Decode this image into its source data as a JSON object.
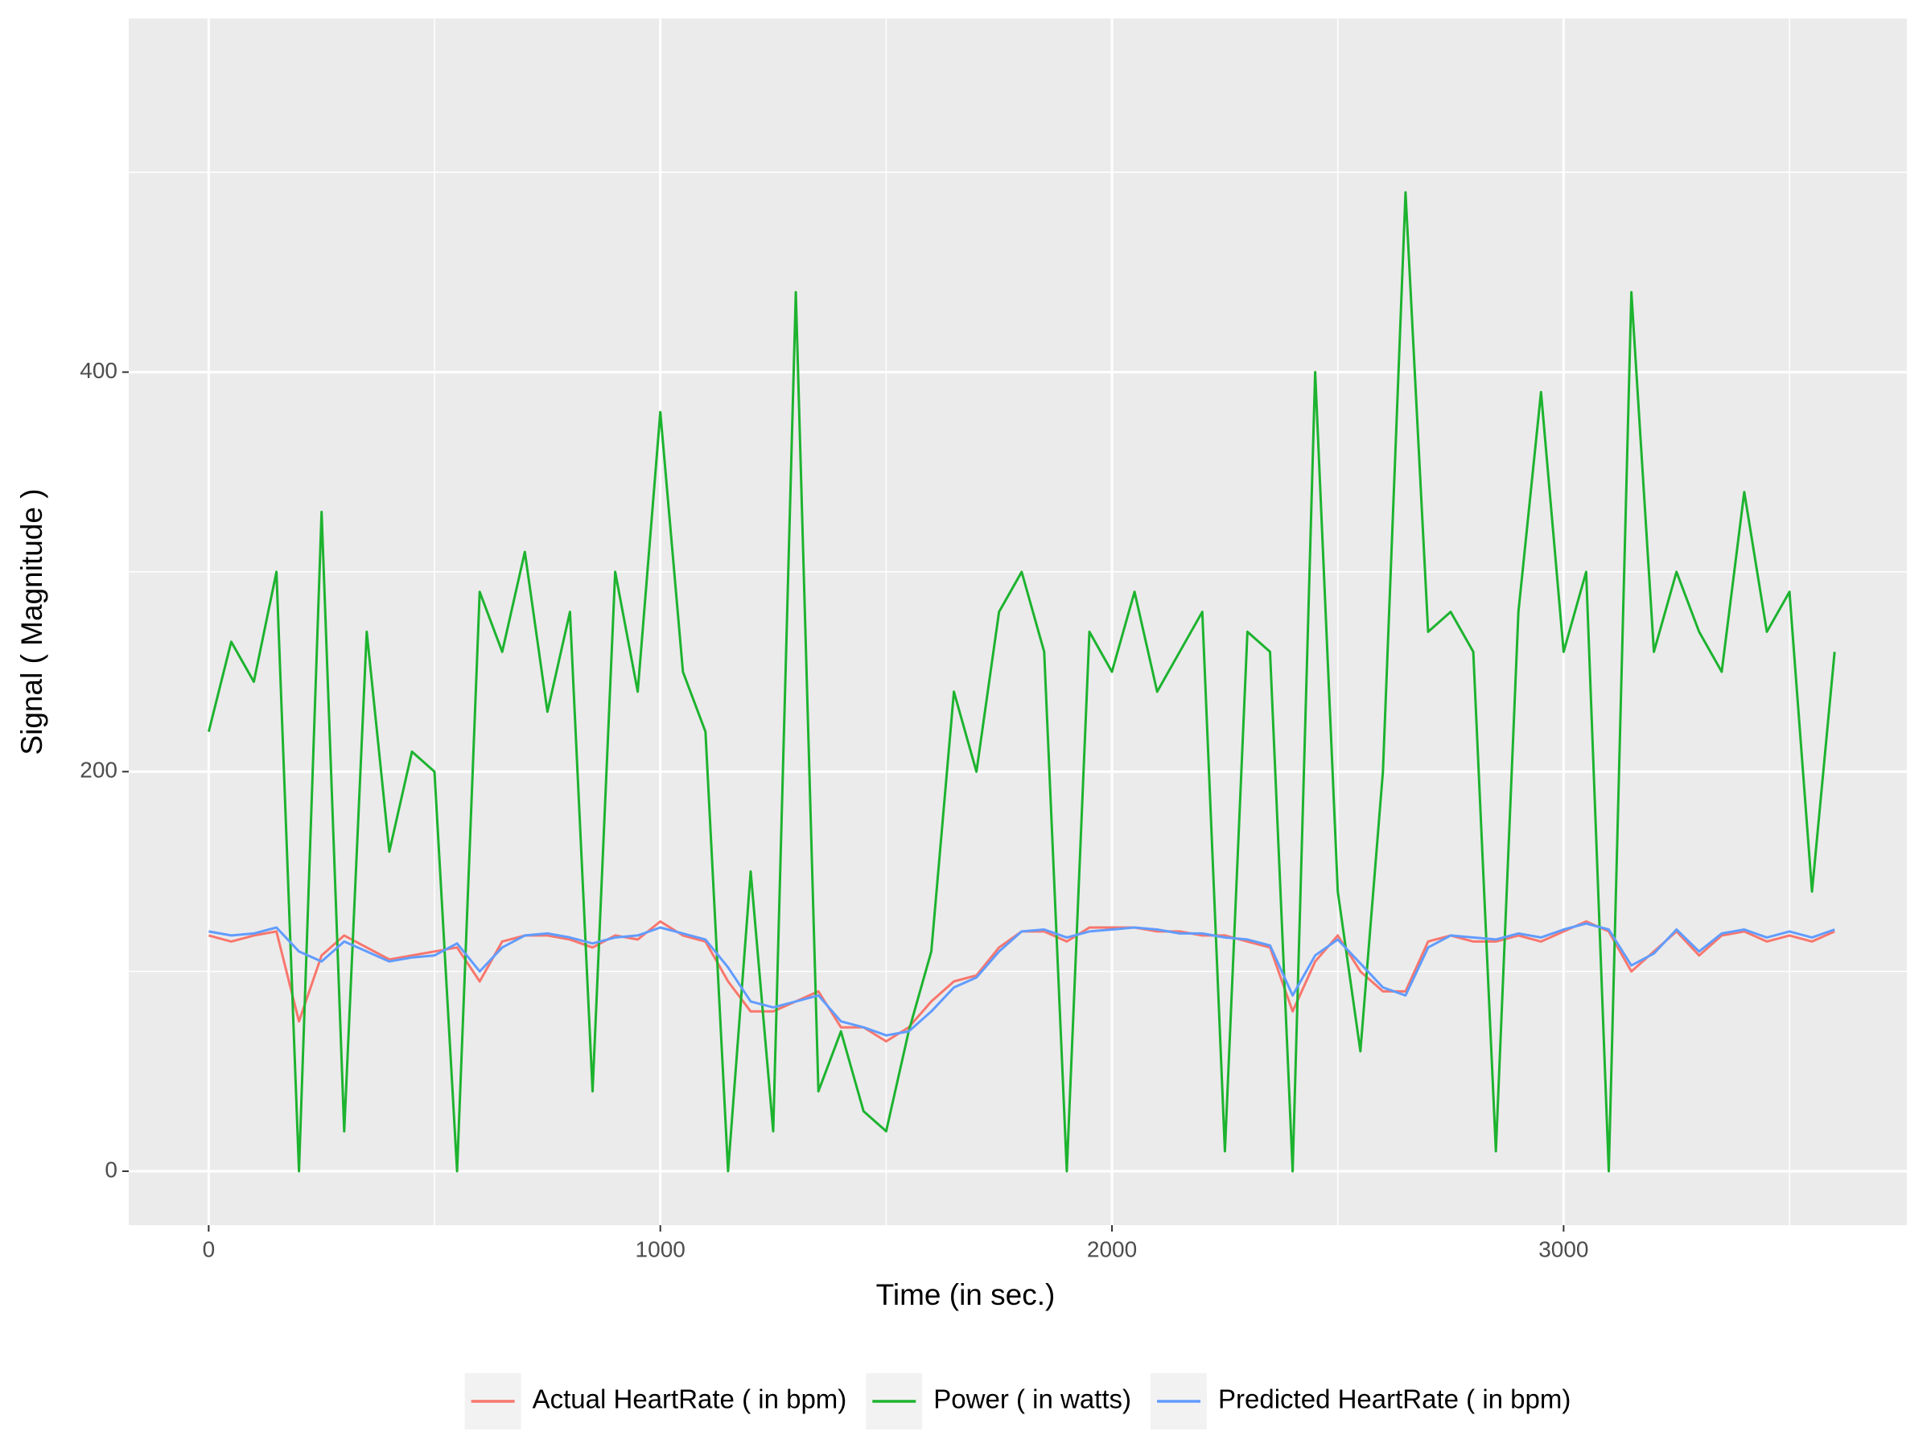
{
  "chart_data": {
    "type": "line",
    "x_label": "Time (in sec.)",
    "y_label": "Signal ( Magnitude )",
    "x": [
      0,
      50,
      100,
      150,
      200,
      250,
      300,
      350,
      400,
      450,
      500,
      550,
      600,
      650,
      700,
      750,
      800,
      850,
      900,
      950,
      1000,
      1050,
      1100,
      1150,
      1200,
      1250,
      1300,
      1350,
      1400,
      1450,
      1500,
      1550,
      1600,
      1650,
      1700,
      1750,
      1800,
      1850,
      1900,
      1950,
      2000,
      2050,
      2100,
      2150,
      2200,
      2250,
      2300,
      2350,
      2400,
      2450,
      2500,
      2550,
      2600,
      2650,
      2700,
      2750,
      2800,
      2850,
      2900,
      2950,
      3000,
      3050,
      3100,
      3150,
      3200,
      3250,
      3300,
      3350,
      3400,
      3450,
      3500,
      3550,
      3600
    ],
    "series": [
      {
        "name": "Actual HeartRate ( in bpm)",
        "color": "#F8766D",
        "values": [
          118,
          115,
          118,
          120,
          75,
          108,
          118,
          112,
          106,
          108,
          110,
          112,
          95,
          115,
          118,
          118,
          116,
          112,
          118,
          116,
          125,
          118,
          115,
          95,
          80,
          80,
          85,
          90,
          72,
          72,
          65,
          72,
          85,
          95,
          98,
          112,
          120,
          120,
          115,
          122,
          122,
          122,
          120,
          120,
          118,
          118,
          115,
          112,
          80,
          105,
          118,
          100,
          90,
          90,
          115,
          118,
          115,
          115,
          118,
          115,
          120,
          125,
          120,
          100,
          110,
          120,
          108,
          118,
          120,
          115,
          118,
          115,
          120
        ]
      },
      {
        "name": "Power ( in watts)",
        "color": "#1DB32F",
        "values": [
          220,
          265,
          245,
          300,
          0,
          330,
          20,
          270,
          160,
          210,
          200,
          0,
          290,
          260,
          310,
          230,
          280,
          40,
          300,
          240,
          380,
          250,
          220,
          0,
          150,
          20,
          440,
          40,
          70,
          30,
          20,
          70,
          110,
          240,
          200,
          280,
          300,
          260,
          0,
          270,
          250,
          290,
          240,
          260,
          280,
          10,
          270,
          260,
          0,
          400,
          140,
          60,
          200,
          490,
          270,
          280,
          260,
          10,
          280,
          390,
          260,
          300,
          0,
          440,
          260,
          300,
          270,
          250,
          340,
          270,
          290,
          140,
          260
        ]
      },
      {
        "name": "Predicted HeartRate ( in bpm)",
        "color": "#619CFF",
        "values": [
          120,
          118,
          119,
          122,
          110,
          105,
          115,
          110,
          105,
          107,
          108,
          114,
          100,
          112,
          118,
          119,
          117,
          114,
          117,
          118,
          122,
          119,
          116,
          102,
          85,
          82,
          85,
          88,
          75,
          72,
          68,
          70,
          80,
          92,
          97,
          110,
          120,
          121,
          117,
          120,
          121,
          122,
          121,
          119,
          119,
          117,
          116,
          113,
          88,
          108,
          116,
          104,
          92,
          88,
          112,
          118,
          117,
          116,
          119,
          117,
          121,
          124,
          121,
          103,
          109,
          121,
          110,
          119,
          121,
          117,
          120,
          117,
          121
        ]
      }
    ],
    "xlim": [
      -177,
      3760
    ],
    "ylim": [
      -27,
      577
    ],
    "xticks": [
      0,
      1000,
      2000,
      3000
    ],
    "yticks": [
      0,
      200,
      400
    ],
    "x_minor_grid": [
      500,
      1500,
      2500,
      3500
    ],
    "y_minor_grid": [
      100,
      300,
      500
    ],
    "grid": true,
    "legend": "bottom"
  }
}
